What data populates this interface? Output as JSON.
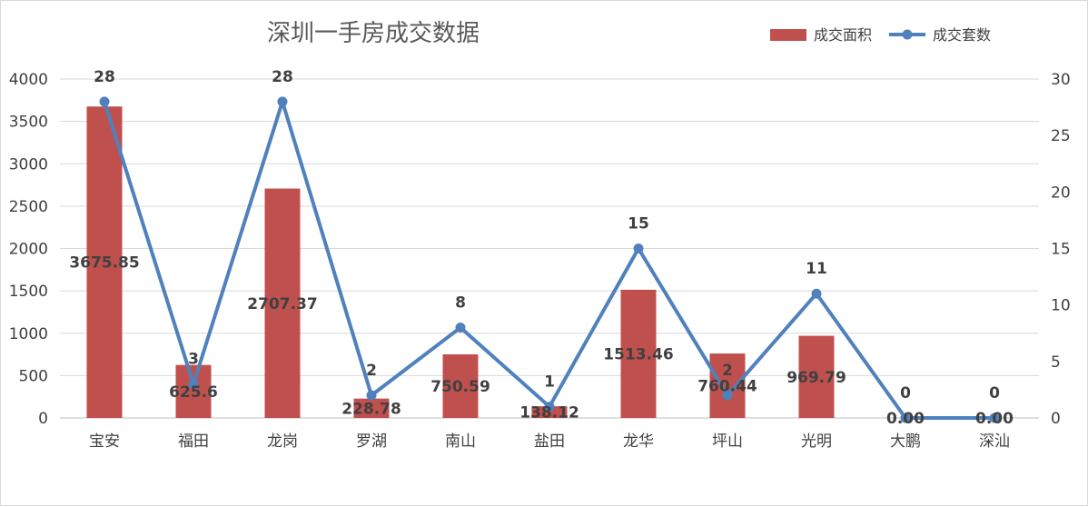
{
  "chart_data": {
    "type": "bar",
    "title": "深圳一手房成交数据",
    "categories": [
      "宝安",
      "福田",
      "龙岗",
      "罗湖",
      "南山",
      "盐田",
      "龙华",
      "坪山",
      "光明",
      "大鹏",
      "深汕"
    ],
    "series": [
      {
        "name": "成交面积",
        "type": "bar",
        "axis": "left",
        "color": "#c0504d",
        "values": [
          3675.85,
          625.6,
          2707.37,
          228.78,
          750.59,
          138.12,
          1513.46,
          760.44,
          969.79,
          0,
          0
        ],
        "labels": [
          "3675.85",
          "625.6",
          "2707.37",
          "228.78",
          "750.59",
          "138.12",
          "1513.46",
          "760.44",
          "969.79",
          "0.00",
          "0.00"
        ]
      },
      {
        "name": "成交套数",
        "type": "line",
        "axis": "right",
        "color": "#4f81bd",
        "values": [
          28,
          3,
          28,
          2,
          8,
          1,
          15,
          2,
          11,
          0,
          0
        ],
        "labels": [
          "28",
          "3",
          "28",
          "2",
          "8",
          "1",
          "15",
          "2",
          "11",
          "0",
          "0"
        ]
      }
    ],
    "ylim": [
      0,
      4000
    ],
    "yticks": [
      "0",
      "500",
      "1000",
      "1500",
      "2000",
      "2500",
      "3000",
      "3500",
      "4000"
    ],
    "y2lim": [
      0,
      30
    ],
    "y2ticks": [
      "0",
      "5",
      "10",
      "15",
      "20",
      "25",
      "30"
    ],
    "grid": true,
    "legend": "top-right"
  }
}
